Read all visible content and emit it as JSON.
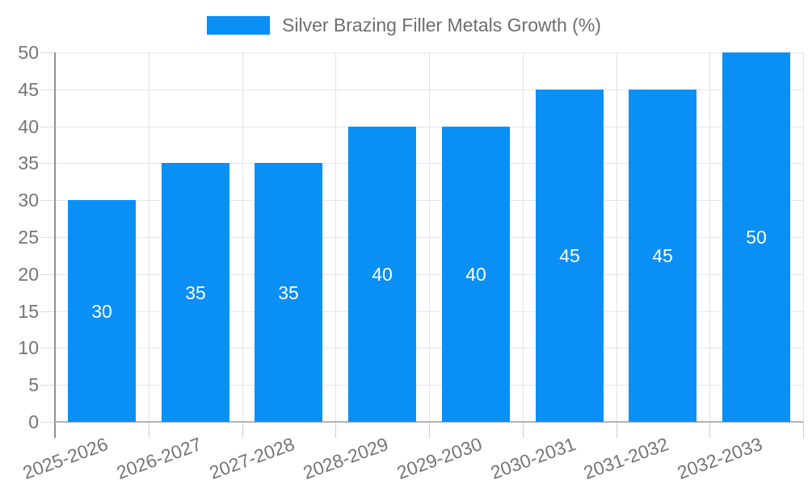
{
  "chart_data": {
    "type": "bar",
    "title": "Silver Brazing Filler Metals Growth (%)",
    "categories": [
      "2025-2026",
      "2026-2027",
      "2027-2028",
      "2028-2029",
      "2029-2030",
      "2030-2031",
      "2031-2032",
      "2032-2033"
    ],
    "values": [
      30,
      35,
      35,
      40,
      40,
      45,
      45,
      50
    ],
    "bar_labels": [
      "30",
      "35",
      "35",
      "40",
      "40",
      "45",
      "45",
      "50"
    ],
    "xlabel": "",
    "ylabel": "",
    "ylim": [
      0,
      50
    ],
    "yticks": [
      0,
      5,
      10,
      15,
      20,
      25,
      30,
      35,
      40,
      45,
      50
    ],
    "grid": true,
    "legend_position": "top",
    "colors": {
      "bar": "#0a8ff5",
      "bar_label_text": "#ffffff",
      "legend_text": "#6e6e6e",
      "axis_text": "#757575",
      "grid_line": "#e6e6e6",
      "axis_line": "#919191",
      "baseline": "#b3b3b3",
      "background": "#ffffff"
    }
  }
}
